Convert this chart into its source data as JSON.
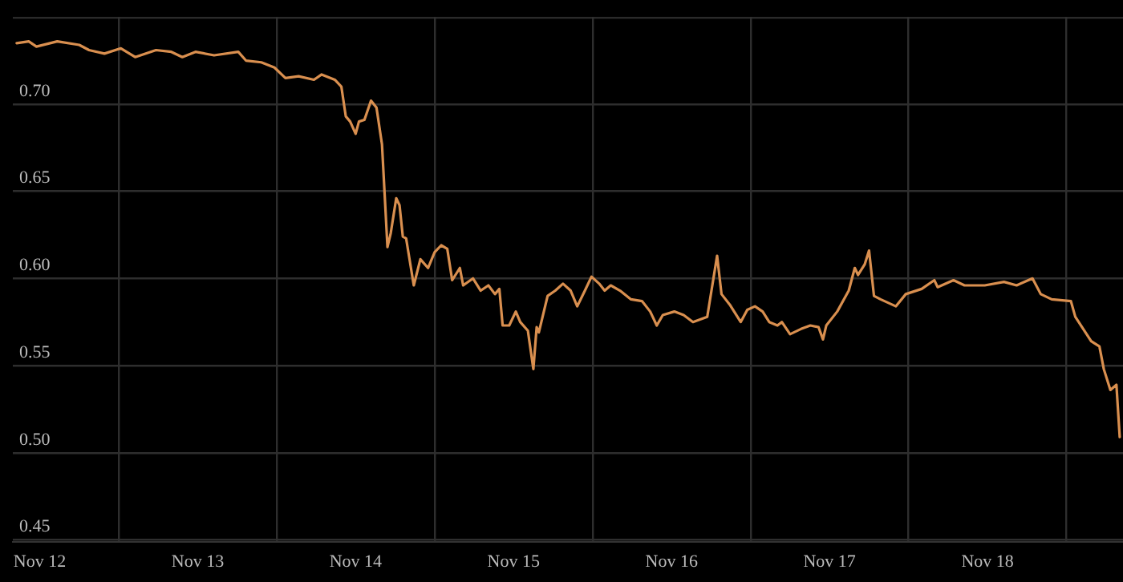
{
  "chart_data": {
    "type": "line",
    "x": [
      "--11-11T20:30",
      "--11-11T22:20",
      "--11-11T23:30",
      "--11-12T02:40",
      "--11-12T06:00",
      "--11-12T07:30",
      "--11-12T09:50",
      "--11-12T12:20",
      "--11-12T14:30",
      "--11-12T17:40",
      "--11-12T20:00",
      "--11-12T21:40",
      "--11-12T23:40",
      "--11-13T02:30",
      "--11-13T06:10",
      "--11-13T07:20",
      "--11-13T09:40",
      "--11-13T11:40",
      "--11-13T13:20",
      "--11-13T15:20",
      "--11-13T17:40",
      "--11-13T18:50",
      "--11-13T20:50",
      "--11-13T21:50",
      "--11-13T22:30",
      "--11-13T23:10",
      "--11-14T00:00",
      "--11-14T00:30",
      "--11-14T01:20",
      "--11-14T02:20",
      "--11-14T03:10",
      "--11-14T04:00",
      "--11-14T04:50",
      "--11-14T05:20",
      "--11-14T06:10",
      "--11-14T06:40",
      "--11-14T07:10",
      "--11-14T07:40",
      "--11-14T08:50",
      "--11-14T09:50",
      "--11-14T11:00",
      "--11-14T12:00",
      "--11-14T13:00",
      "--11-14T13:55",
      "--11-14T14:40",
      "--11-14T15:50",
      "--11-14T16:20",
      "--11-14T17:50",
      "--11-14T19:00",
      "--11-14T20:10",
      "--11-14T21:10",
      "--11-14T21:50",
      "--11-14T22:20",
      "--11-14T23:20",
      "--11-15T00:20",
      "--11-15T01:00",
      "--11-15T02:10",
      "--11-15T03:00",
      "--11-15T03:30",
      "--11-15T03:50",
      "--11-15T05:10",
      "--11-15T06:20",
      "--11-15T07:30",
      "--11-15T08:40",
      "--11-15T09:40",
      "--11-15T10:50",
      "--11-15T11:50",
      "--11-15T13:00",
      "--11-15T13:50",
      "--11-15T14:45",
      "--11-15T16:10",
      "--11-15T17:50",
      "--11-15T19:30",
      "--11-15T20:45",
      "--11-15T21:45",
      "--11-15T22:40",
      "--11-16T00:25",
      "--11-16T01:50",
      "--11-16T03:15",
      "--11-16T05:25",
      "--11-16T06:55",
      "--11-16T07:35",
      "--11-16T08:50",
      "--11-16T10:30",
      "--11-16T11:30",
      "--11-16T12:40",
      "--11-16T13:50",
      "--11-16T14:50",
      "--11-16T16:05",
      "--11-16T16:45",
      "--11-16T18:00",
      "--11-16T19:40",
      "--11-16T21:05",
      "--11-16T22:20",
      "--11-16T23:00",
      "--11-16T23:30",
      "--11-17T01:10",
      "--11-17T02:55",
      "--11-17T03:50",
      "--11-17T04:20",
      "--11-17T05:20",
      "--11-17T06:00",
      "--11-17T06:45",
      "--11-17T07:45",
      "--11-17T10:05",
      "--11-17T11:35",
      "--11-17T14:00",
      "--11-17T15:55",
      "--11-17T16:25",
      "--11-17T18:50",
      "--11-17T20:30",
      "--11-17T23:35",
      "--11-18T02:30",
      "--11-18T04:25",
      "--11-18T06:50",
      "--11-18T08:05",
      "--11-18T09:45",
      "--11-18T12:40",
      "--11-18T13:20",
      "--11-18T15:45",
      "--11-18T17:00",
      "--11-18T17:40",
      "--11-18T18:40",
      "--11-18T19:35",
      "--11-18T20:05"
    ],
    "series": [
      {
        "color": "#d98f4f",
        "values": [
          0.735,
          0.736,
          0.733,
          0.736,
          0.734,
          0.731,
          0.729,
          0.732,
          0.727,
          0.731,
          0.73,
          0.727,
          0.73,
          0.728,
          0.73,
          0.725,
          0.724,
          0.721,
          0.715,
          0.716,
          0.714,
          0.717,
          0.714,
          0.71,
          0.693,
          0.69,
          0.683,
          0.69,
          0.691,
          0.702,
          0.698,
          0.677,
          0.618,
          0.626,
          0.646,
          0.642,
          0.624,
          0.623,
          0.596,
          0.611,
          0.606,
          0.615,
          0.619,
          0.617,
          0.599,
          0.606,
          0.596,
          0.6,
          0.593,
          0.596,
          0.591,
          0.594,
          0.573,
          0.573,
          0.581,
          0.575,
          0.57,
          0.548,
          0.572,
          0.569,
          0.59,
          0.593,
          0.597,
          0.593,
          0.584,
          0.593,
          0.601,
          0.597,
          0.593,
          0.596,
          0.593,
          0.588,
          0.587,
          0.581,
          0.573,
          0.579,
          0.581,
          0.579,
          0.575,
          0.578,
          0.613,
          0.591,
          0.585,
          0.575,
          0.582,
          0.584,
          0.581,
          0.575,
          0.573,
          0.575,
          0.568,
          0.571,
          0.573,
          0.572,
          0.565,
          0.573,
          0.581,
          0.593,
          0.606,
          0.602,
          0.608,
          0.616,
          0.59,
          0.588,
          0.584,
          0.591,
          0.594,
          0.599,
          0.595,
          0.599,
          0.596,
          0.596,
          0.598,
          0.596,
          0.6,
          0.591,
          0.588,
          0.587,
          0.578,
          0.564,
          0.561,
          0.548,
          0.536,
          0.539,
          0.509
        ]
      }
    ],
    "xlim": [
      "--11-11T19:55",
      "--11-18T20:35"
    ],
    "xticks": [
      {
        "value": "--11-12",
        "label": "Nov 12"
      },
      {
        "value": "--11-12T12:00",
        "label": null
      },
      {
        "value": "--11-13",
        "label": "Nov 13"
      },
      {
        "value": "--11-13T12:00",
        "label": null
      },
      {
        "value": "--11-14",
        "label": "Nov 14"
      },
      {
        "value": "--11-14T12:00",
        "label": null
      },
      {
        "value": "--11-15",
        "label": "Nov 15"
      },
      {
        "value": "--11-15T12:00",
        "label": null
      },
      {
        "value": "--11-16",
        "label": "Nov 16"
      },
      {
        "value": "--11-16T12:00",
        "label": null
      },
      {
        "value": "--11-17",
        "label": "Nov 17"
      },
      {
        "value": "--11-17T12:00",
        "label": null
      },
      {
        "value": "--11-18",
        "label": "Nov 18"
      },
      {
        "value": "--11-18T12:00",
        "label": null
      }
    ],
    "ylim": [
      0.449,
      0.75
    ],
    "yticks": [
      {
        "value": 0.45,
        "label": "0.45"
      },
      {
        "value": 0.5,
        "label": "0.50"
      },
      {
        "value": 0.55,
        "label": "0.55"
      },
      {
        "value": 0.6,
        "label": "0.60"
      },
      {
        "value": 0.65,
        "label": "0.65"
      },
      {
        "value": 0.7,
        "label": "0.70"
      }
    ],
    "grid": true,
    "legend": false,
    "marker": "none",
    "line_style": "solid"
  }
}
